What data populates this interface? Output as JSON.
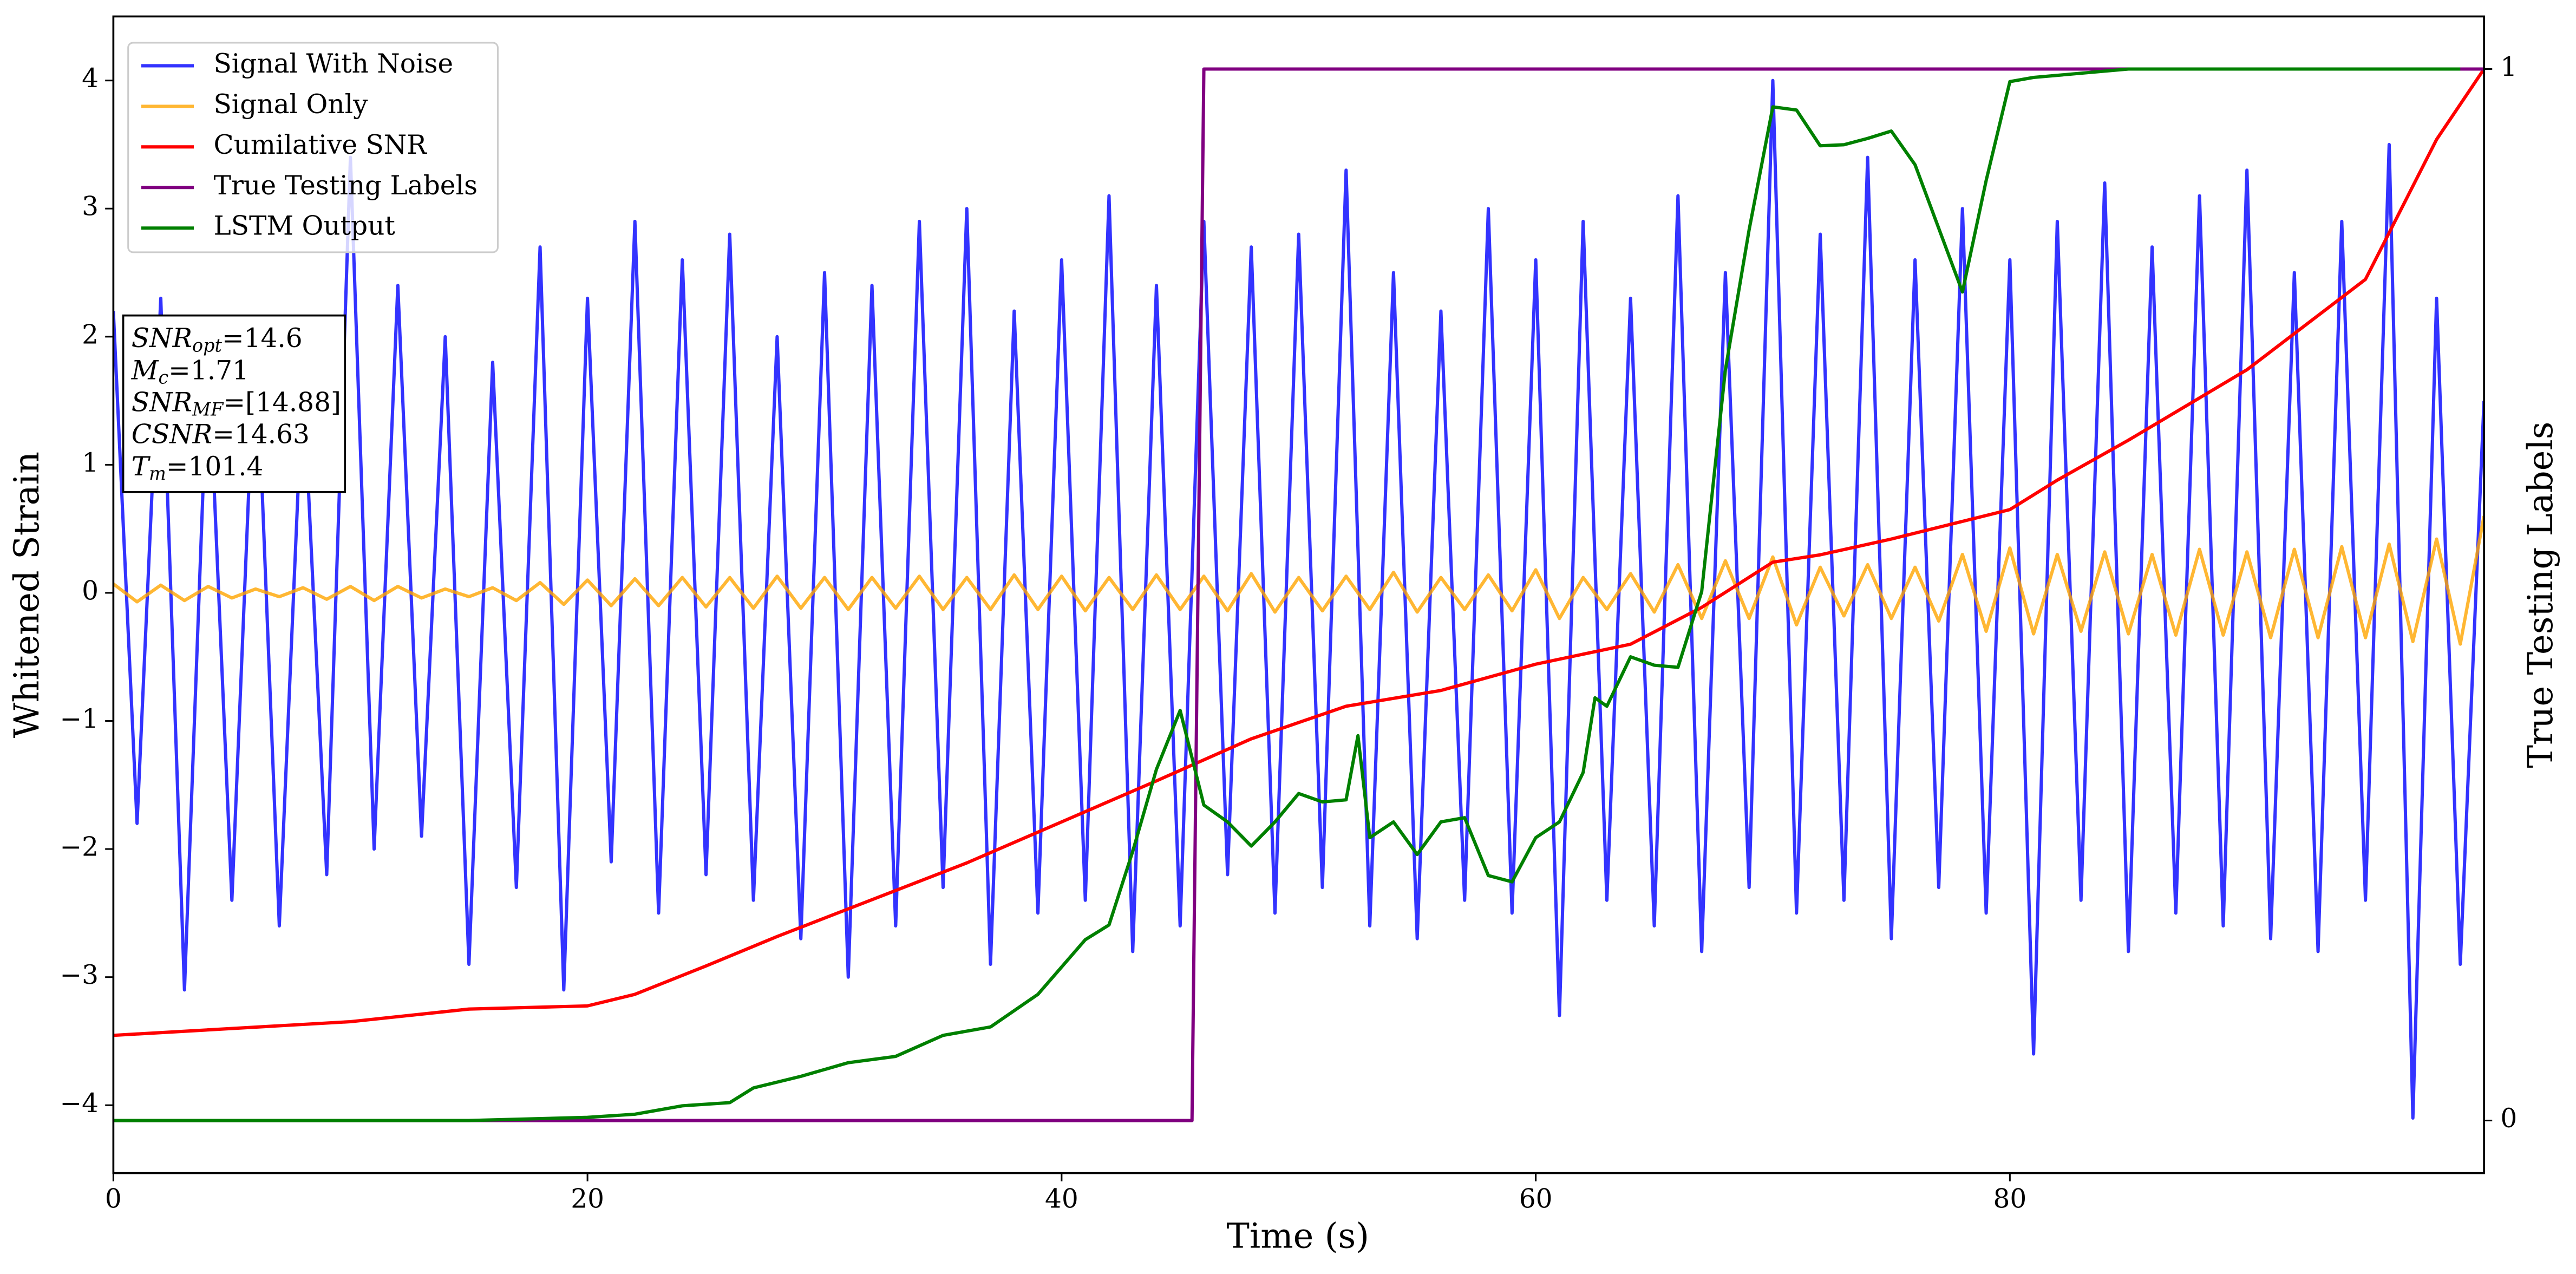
{
  "chart_data": {
    "type": "line",
    "xlabel": "Time (s)",
    "ylabel": "Whitened Strain",
    "y2label": "True Testing Labels",
    "xlim": [
      0,
      100
    ],
    "ylim": [
      -4.53,
      4.5
    ],
    "y2lim": [
      -0.05,
      1.05
    ],
    "xticks": [
      0,
      20,
      40,
      60,
      80
    ],
    "yticks": [
      {
        "value": -4,
        "label": "−4"
      },
      {
        "value": -3,
        "label": "−3"
      },
      {
        "value": -2,
        "label": "−2"
      },
      {
        "value": -1,
        "label": "−1"
      },
      0,
      1,
      2,
      3,
      4
    ],
    "y2ticks": [
      0,
      1
    ],
    "legend": "upper left",
    "annotation": [
      {
        "base": "SNR",
        "sub": "opt",
        "rest": "=14.6"
      },
      {
        "base": "M",
        "sub": "c",
        "rest": "=1.71"
      },
      {
        "base": "SNR",
        "sub": "MF",
        "rest": "=[14.88]"
      },
      {
        "base": "CSNR",
        "rest": "=14.63"
      },
      {
        "base": "T",
        "sub": "m",
        "rest": "=101.4"
      }
    ],
    "series": [
      {
        "name": "Signal With Noise",
        "color": "#0000ff",
        "alpha": 0.8,
        "x": [
          0,
          1,
          2,
          3,
          4,
          5,
          6,
          7,
          8,
          9,
          10,
          11,
          12,
          13,
          14,
          15,
          16,
          17,
          18,
          19,
          20,
          21,
          22,
          23,
          24,
          25,
          26,
          27,
          28,
          29,
          30,
          31,
          32,
          33,
          34,
          35,
          36,
          37,
          38,
          39,
          40,
          41,
          42,
          43,
          44,
          45,
          46,
          47,
          48,
          49,
          50,
          51,
          52,
          53,
          54,
          55,
          56,
          57,
          58,
          59,
          60,
          61,
          62,
          63,
          64,
          65,
          66,
          67,
          68,
          69,
          70,
          71,
          72,
          73,
          74,
          75,
          76,
          77,
          78,
          79,
          80,
          81,
          82,
          83,
          84,
          85,
          86,
          87,
          88,
          89,
          90,
          91,
          92,
          93,
          94,
          95,
          96,
          97,
          98,
          99,
          100
        ],
        "values": [
          2.2,
          -1.8,
          2.3,
          -3.1,
          1.9,
          -2.4,
          2.1,
          -2.6,
          1.7,
          -2.2,
          3.4,
          -2.0,
          2.4,
          -1.9,
          2.0,
          -2.9,
          1.8,
          -2.3,
          2.7,
          -3.1,
          2.3,
          -2.1,
          2.9,
          -2.5,
          2.6,
          -2.2,
          2.8,
          -2.4,
          2.0,
          -2.7,
          2.5,
          -3.0,
          2.4,
          -2.6,
          2.9,
          -2.3,
          3.0,
          -2.9,
          2.2,
          -2.5,
          2.6,
          -2.4,
          3.1,
          -2.8,
          2.4,
          -2.6,
          2.9,
          -2.2,
          2.7,
          -2.5,
          2.8,
          -2.3,
          3.3,
          -2.6,
          2.5,
          -2.7,
          2.2,
          -2.4,
          3.0,
          -2.5,
          2.6,
          -3.3,
          2.9,
          -2.4,
          2.3,
          -2.6,
          3.1,
          -2.8,
          2.5,
          -2.3,
          4.0,
          -2.5,
          2.8,
          -2.4,
          3.4,
          -2.7,
          2.6,
          -2.3,
          3.0,
          -2.5,
          2.6,
          -3.6,
          2.9,
          -2.4,
          3.2,
          -2.8,
          2.7,
          -2.5,
          3.1,
          -2.6,
          3.3,
          -2.7,
          2.5,
          -2.8,
          2.9,
          -2.4,
          3.5,
          -4.1,
          2.3,
          -2.9,
          1.5
        ]
      },
      {
        "name": "Signal Only",
        "color": "#ffa500",
        "alpha": 0.8,
        "x": [
          0,
          1,
          2,
          3,
          4,
          5,
          6,
          7,
          8,
          9,
          10,
          11,
          12,
          13,
          14,
          15,
          16,
          17,
          18,
          19,
          20,
          21,
          22,
          23,
          24,
          25,
          26,
          27,
          28,
          29,
          30,
          31,
          32,
          33,
          34,
          35,
          36,
          37,
          38,
          39,
          40,
          41,
          42,
          43,
          44,
          45,
          46,
          47,
          48,
          49,
          50,
          51,
          52,
          53,
          54,
          55,
          56,
          57,
          58,
          59,
          60,
          61,
          62,
          63,
          64,
          65,
          66,
          67,
          68,
          69,
          70,
          71,
          72,
          73,
          74,
          75,
          76,
          77,
          78,
          79,
          80,
          81,
          82,
          83,
          84,
          85,
          86,
          87,
          88,
          89,
          90,
          91,
          92,
          93,
          94,
          95,
          96,
          97,
          98,
          99,
          100
        ],
        "values": [
          0.07,
          -0.07,
          0.06,
          -0.06,
          0.05,
          -0.04,
          0.03,
          -0.03,
          0.04,
          -0.05,
          0.05,
          -0.06,
          0.05,
          -0.04,
          0.03,
          -0.03,
          0.04,
          -0.06,
          0.08,
          -0.09,
          0.1,
          -0.1,
          0.11,
          -0.1,
          0.12,
          -0.11,
          0.12,
          -0.12,
          0.13,
          -0.12,
          0.12,
          -0.13,
          0.12,
          -0.12,
          0.13,
          -0.13,
          0.12,
          -0.13,
          0.14,
          -0.13,
          0.13,
          -0.14,
          0.12,
          -0.13,
          0.14,
          -0.13,
          0.13,
          -0.14,
          0.15,
          -0.15,
          0.12,
          -0.14,
          0.13,
          -0.13,
          0.16,
          -0.15,
          0.12,
          -0.13,
          0.14,
          -0.14,
          0.18,
          -0.2,
          0.12,
          -0.13,
          0.15,
          -0.15,
          0.22,
          -0.2,
          0.25,
          -0.2,
          0.28,
          -0.25,
          0.2,
          -0.18,
          0.22,
          -0.2,
          0.2,
          -0.22,
          0.3,
          -0.3,
          0.35,
          -0.32,
          0.3,
          -0.3,
          0.32,
          -0.32,
          0.3,
          -0.33,
          0.34,
          -0.33,
          0.32,
          -0.35,
          0.34,
          -0.35,
          0.36,
          -0.35,
          0.38,
          -0.38,
          0.42,
          -0.4,
          0.6
        ]
      },
      {
        "name": "Cumilative SNR",
        "color": "#ff0000",
        "axis": "y2",
        "x": [
          0,
          10,
          15,
          20,
          22,
          25,
          28,
          32,
          36,
          40,
          44,
          48,
          52,
          56,
          60,
          64,
          67,
          70,
          72,
          75,
          80,
          82,
          85,
          90,
          95,
          98,
          100
        ],
        "values": [
          0.081,
          0.094,
          0.106,
          0.109,
          0.12,
          0.147,
          0.175,
          0.21,
          0.245,
          0.284,
          0.323,
          0.363,
          0.394,
          0.409,
          0.434,
          0.453,
          0.488,
          0.531,
          0.538,
          0.553,
          0.581,
          0.609,
          0.647,
          0.714,
          0.8,
          0.933,
          1.0
        ]
      },
      {
        "name": "True Testing Labels",
        "color": "#800080",
        "axis": "y2",
        "x": [
          0,
          45.5,
          46,
          100
        ],
        "values": [
          0,
          0,
          1,
          1
        ]
      },
      {
        "name": "LSTM Output",
        "color": "#008000",
        "axis": "y2",
        "x": [
          0,
          15,
          20,
          22,
          24,
          26,
          27,
          29,
          31,
          33,
          35,
          37,
          39,
          41,
          42,
          43,
          44,
          45,
          46,
          47,
          48,
          49,
          50,
          51,
          52,
          52.5,
          53,
          54,
          55,
          56,
          57,
          58,
          59,
          60,
          61,
          62,
          62.5,
          63,
          64,
          65,
          66,
          67,
          68,
          69,
          70,
          71,
          72,
          73,
          74,
          75,
          76,
          78,
          79,
          80,
          81,
          85,
          99
        ],
        "values": [
          0,
          0,
          0.003,
          0.006,
          0.014,
          0.017,
          0.031,
          0.042,
          0.055,
          0.061,
          0.081,
          0.089,
          0.12,
          0.172,
          0.186,
          0.256,
          0.334,
          0.39,
          0.3,
          0.284,
          0.261,
          0.284,
          0.311,
          0.303,
          0.305,
          0.366,
          0.269,
          0.284,
          0.253,
          0.284,
          0.288,
          0.233,
          0.227,
          0.269,
          0.284,
          0.331,
          0.402,
          0.394,
          0.441,
          0.433,
          0.431,
          0.503,
          0.714,
          0.847,
          0.964,
          0.961,
          0.927,
          0.928,
          0.934,
          0.941,
          0.909,
          0.788,
          0.894,
          0.988,
          0.992,
          1.0,
          1.0
        ]
      }
    ]
  }
}
